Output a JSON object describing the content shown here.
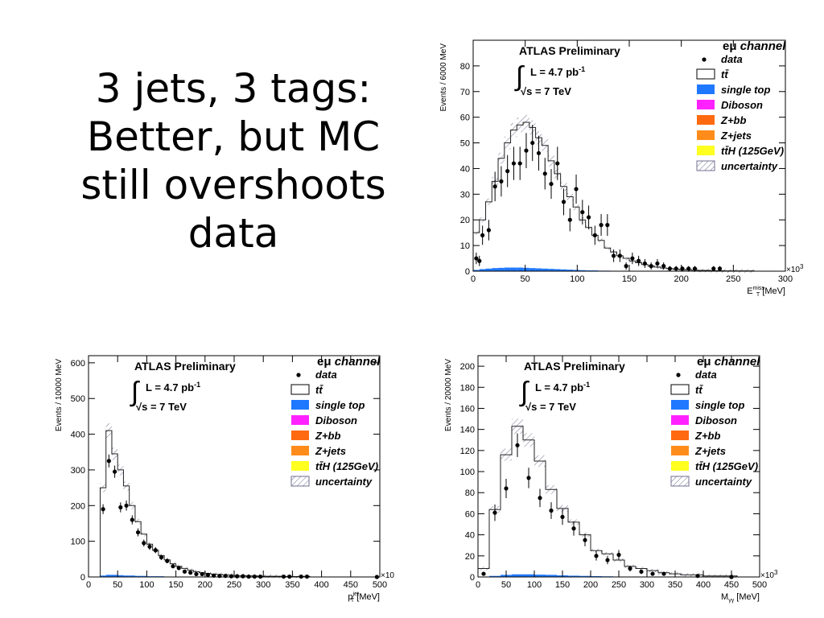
{
  "slide": {
    "title": "3 jets, 3 tags:\nBetter, but MC\nstill overshoots\ndata"
  },
  "colors": {
    "frame": "#000000",
    "mc_line": "#222222",
    "hatch": "#6f6f8f",
    "single_top": "#1f78ff",
    "diboson": "#ff22ff",
    "zbb": "#ff6a10",
    "zjets": "#ff8c1a",
    "ttH": "#ffff20",
    "background": "#ffffff"
  },
  "legend_common": {
    "experiment": "ATLAS Preliminary",
    "integral_sign": "∫",
    "lumi": "L = 4.7 pb",
    "lumi_exp": "-1",
    "energy": "√s = 7 TeV",
    "channel_prefix": "eμ",
    "channel": " channel",
    "entries": [
      {
        "key": "data",
        "label": "data",
        "style": "marker"
      },
      {
        "key": "ttbar",
        "label": "tt̄",
        "style": "open"
      },
      {
        "key": "single_top",
        "label": "single top",
        "style": "fill",
        "color": "#1f78ff"
      },
      {
        "key": "diboson",
        "label": "Diboson",
        "style": "fill",
        "color": "#ff22ff"
      },
      {
        "key": "zbb",
        "label": "Z+bb",
        "style": "fill",
        "color": "#ff6a10"
      },
      {
        "key": "zjets",
        "label": "Z+jets",
        "style": "fill",
        "color": "#ff8c1a"
      },
      {
        "key": "ttH",
        "label": "tt̄H (125GeV)",
        "style": "fill",
        "color": "#ffff20"
      },
      {
        "key": "uncertainty",
        "label": "uncertainty",
        "style": "hatch"
      }
    ]
  },
  "chart_data": [
    {
      "type": "histogram",
      "id": "met",
      "ylabel": "Events / 6000 MeV",
      "xlabel_main": "E",
      "xlabel_sub": "T",
      "xlabel_sup": "miss",
      "xlabel_unit": " [MeV]",
      "x_multiplier": "×10",
      "x_multiplier_exp": "3",
      "xlim": [
        0,
        300
      ],
      "ylim": [
        0,
        90
      ],
      "xticks": [
        0,
        50,
        100,
        150,
        200,
        250,
        300
      ],
      "yticks": [
        0,
        10,
        20,
        30,
        40,
        50,
        60,
        70,
        80
      ],
      "bin_width": 6,
      "mc_total": [
        15,
        20,
        27,
        35,
        44,
        50,
        55,
        57,
        58,
        56,
        52,
        49,
        43,
        38,
        33,
        29,
        25,
        20,
        17,
        14,
        12,
        9,
        7.5,
        6,
        5,
        4,
        3.3,
        2.6,
        2,
        1.6,
        1.2,
        1,
        0.8,
        0.6,
        0.5,
        0.4,
        0.3,
        0.3,
        0.2,
        0.2,
        0.1,
        0.1,
        0.1,
        0.1,
        0.1,
        0,
        0,
        0,
        0,
        0
      ],
      "single_top": [
        0.5,
        0.8,
        1,
        1.2,
        1.3,
        1.4,
        1.4,
        1.4,
        1.3,
        1.2,
        1.1,
        1,
        0.9,
        0.8,
        0.7,
        0.6,
        0.5,
        0.4,
        0.3,
        0.3,
        0.2,
        0.2,
        0.1,
        0.1,
        0.1,
        0,
        0,
        0,
        0,
        0,
        0,
        0,
        0,
        0,
        0,
        0,
        0,
        0,
        0,
        0,
        0,
        0,
        0,
        0,
        0,
        0,
        0,
        0,
        0,
        0
      ],
      "data_points": [
        [
          3,
          5
        ],
        [
          6,
          4
        ],
        [
          9,
          14
        ],
        [
          15,
          16
        ],
        [
          21,
          33
        ],
        [
          27,
          35
        ],
        [
          33,
          39
        ],
        [
          39,
          42
        ],
        [
          45,
          42
        ],
        [
          51,
          47
        ],
        [
          57,
          50
        ],
        [
          63,
          46
        ],
        [
          69,
          38
        ],
        [
          75,
          34
        ],
        [
          81,
          42
        ],
        [
          87,
          27
        ],
        [
          93,
          20
        ],
        [
          99,
          32
        ],
        [
          105,
          23
        ],
        [
          111,
          21
        ],
        [
          117,
          14
        ],
        [
          123,
          18
        ],
        [
          129,
          18
        ],
        [
          135,
          6
        ],
        [
          141,
          6
        ],
        [
          147,
          2
        ],
        [
          153,
          5
        ],
        [
          159,
          4
        ],
        [
          165,
          3
        ],
        [
          171,
          2
        ],
        [
          177,
          3
        ],
        [
          183,
          2
        ],
        [
          189,
          1
        ],
        [
          195,
          1
        ],
        [
          201,
          1
        ],
        [
          207,
          1
        ],
        [
          213,
          1
        ],
        [
          231,
          1
        ],
        [
          237,
          1
        ]
      ]
    },
    {
      "type": "histogram",
      "id": "jetpt",
      "ylabel": "Events / 10000 MeV",
      "xlabel_main": "p",
      "xlabel_sub": "T",
      "xlabel_sup": "jet",
      "xlabel_unit": " [MeV]",
      "x_multiplier": "×10",
      "x_multiplier_exp": "3",
      "xlim": [
        0,
        500
      ],
      "ylim": [
        0,
        620
      ],
      "xticks": [
        0,
        50,
        100,
        150,
        200,
        250,
        300,
        350,
        400,
        450,
        500
      ],
      "yticks": [
        0,
        100,
        200,
        300,
        400,
        500,
        600
      ],
      "bin_width": 10,
      "mc_total": [
        0,
        0,
        250,
        410,
        345,
        300,
        255,
        200,
        155,
        120,
        92,
        75,
        60,
        48,
        37,
        30,
        24,
        19,
        15,
        12,
        10,
        8,
        7,
        6,
        5,
        4,
        4,
        3,
        3,
        2,
        2,
        2,
        2,
        1,
        1,
        1,
        1,
        1,
        0,
        0,
        0,
        0,
        0,
        0,
        0,
        0,
        0,
        0,
        0,
        0
      ],
      "single_top": [
        0,
        0,
        4,
        6,
        6,
        5,
        4,
        4,
        3,
        3,
        2,
        2,
        2,
        1,
        1,
        1,
        1,
        0,
        0,
        0,
        0,
        0,
        0,
        0,
        0,
        0,
        0,
        0,
        0,
        0,
        0,
        0,
        0,
        0,
        0,
        0,
        0,
        0,
        0,
        0,
        0,
        0,
        0,
        0,
        0,
        0,
        0,
        0,
        0,
        0
      ],
      "data_points": [
        [
          25,
          190
        ],
        [
          35,
          325
        ],
        [
          45,
          295
        ],
        [
          55,
          195
        ],
        [
          65,
          200
        ],
        [
          75,
          160
        ],
        [
          85,
          125
        ],
        [
          95,
          95
        ],
        [
          105,
          85
        ],
        [
          115,
          75
        ],
        [
          125,
          55
        ],
        [
          135,
          45
        ],
        [
          145,
          30
        ],
        [
          155,
          25
        ],
        [
          165,
          15
        ],
        [
          175,
          12
        ],
        [
          185,
          8
        ],
        [
          195,
          8
        ],
        [
          205,
          6
        ],
        [
          215,
          4
        ],
        [
          225,
          3
        ],
        [
          235,
          3
        ],
        [
          245,
          2
        ],
        [
          255,
          2
        ],
        [
          265,
          2
        ],
        [
          275,
          1
        ],
        [
          285,
          1
        ],
        [
          295,
          1
        ],
        [
          335,
          1
        ],
        [
          345,
          1
        ],
        [
          365,
          1
        ],
        [
          375,
          1
        ],
        [
          495,
          0
        ]
      ]
    },
    {
      "type": "histogram",
      "id": "myy",
      "ylabel": "Events / 20000 MeV",
      "xlabel_main": "M",
      "xlabel_sub": "γγ",
      "xlabel_sup": "",
      "xlabel_unit": " [MeV]",
      "x_multiplier": "×10",
      "x_multiplier_exp": "3",
      "xlim": [
        0,
        500
      ],
      "ylim": [
        0,
        210
      ],
      "xticks": [
        0,
        50,
        100,
        150,
        200,
        250,
        300,
        350,
        400,
        450,
        500
      ],
      "yticks": [
        0,
        20,
        40,
        60,
        80,
        100,
        120,
        140,
        160,
        180,
        200
      ],
      "bin_width": 20,
      "mc_total": [
        8,
        64,
        116,
        143,
        130,
        110,
        83,
        65,
        52,
        40,
        25,
        22,
        16,
        10,
        8,
        6,
        4,
        3,
        2,
        2,
        1,
        1,
        1,
        0,
        0
      ],
      "single_top": [
        0.3,
        1,
        2,
        2.5,
        2.5,
        2.2,
        2,
        1.5,
        1.2,
        1,
        0.8,
        0.6,
        0.4,
        0.3,
        0.2,
        0.1,
        0.1,
        0,
        0,
        0,
        0,
        0,
        0,
        0,
        0
      ],
      "data_points": [
        [
          10,
          3
        ],
        [
          30,
          61
        ],
        [
          50,
          84
        ],
        [
          70,
          125
        ],
        [
          90,
          94
        ],
        [
          110,
          75
        ],
        [
          130,
          63
        ],
        [
          150,
          57
        ],
        [
          170,
          46
        ],
        [
          190,
          35
        ],
        [
          210,
          20
        ],
        [
          230,
          16
        ],
        [
          250,
          21
        ],
        [
          270,
          8
        ],
        [
          290,
          5
        ],
        [
          310,
          3
        ],
        [
          330,
          3
        ],
        [
          390,
          1
        ],
        [
          450,
          0
        ]
      ]
    }
  ]
}
